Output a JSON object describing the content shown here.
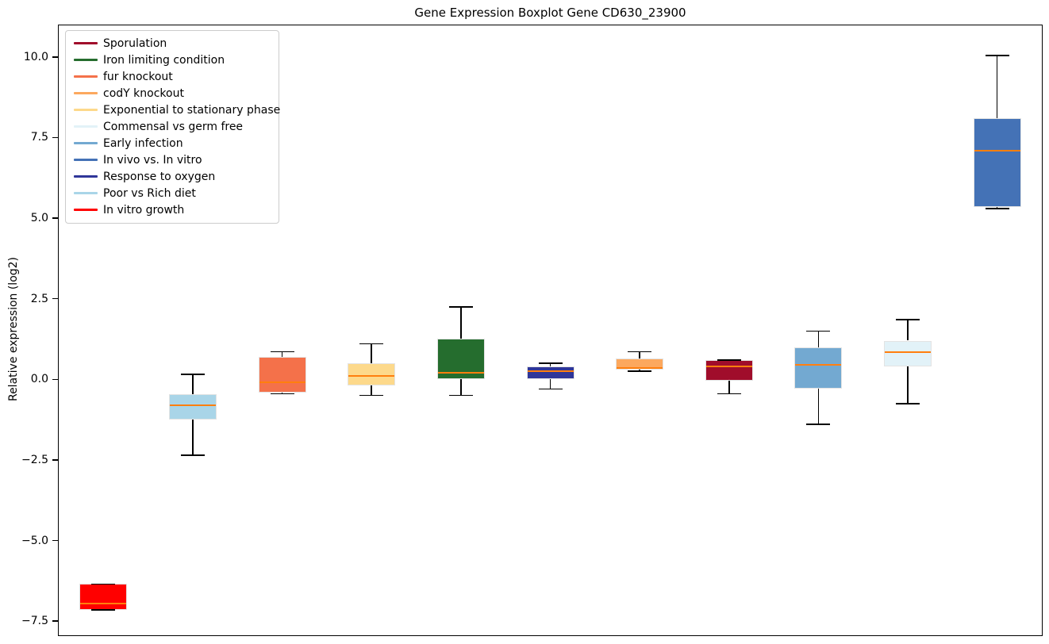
{
  "chart_data": {
    "type": "boxplot",
    "title": "Gene Expression Boxplot Gene CD630_23900",
    "xlabel": "",
    "ylabel": "Relative expression (log2)",
    "ylim": [
      -7.94,
      10.98
    ],
    "yticks": [
      10.0,
      7.5,
      5.0,
      2.5,
      0.0,
      -2.5,
      -5.0,
      -7.5
    ],
    "ytick_labels": [
      "10.0",
      "7.5",
      "5.0",
      "2.5",
      "0.0",
      "−2.5",
      "−5.0",
      "−7.5"
    ],
    "grid": false,
    "x_tick_labels_shown": false,
    "median_color": "#ff7f0e",
    "whisker_color": "#000000",
    "legend_position": "upper-left",
    "legend": [
      {
        "label": "Sporulation",
        "color": "#a00d2b"
      },
      {
        "label": "Iron limiting condition",
        "color": "#256d2e"
      },
      {
        "label": "fur knockout",
        "color": "#f4714a"
      },
      {
        "label": "codY knockout",
        "color": "#fca85e"
      },
      {
        "label": "Exponential to stationary phase",
        "color": "#fdd98b"
      },
      {
        "label": "Commensal vs germ free",
        "color": "#e2f2f8"
      },
      {
        "label": "Early infection",
        "color": "#73a9d1"
      },
      {
        "label": "In vivo vs. In vitro",
        "color": "#4472b6"
      },
      {
        "label": "Response to oxygen",
        "color": "#2f3699"
      },
      {
        "label": "Poor vs Rich diet",
        "color": "#a9d5e8"
      },
      {
        "label": "In vitro growth",
        "color": "#ff0000"
      }
    ],
    "series": [
      {
        "name": "In vitro growth",
        "color": "#ff0000",
        "whisker_low": -7.15,
        "q1": -7.15,
        "median": -6.95,
        "q3": -6.35,
        "whisker_high": -6.35
      },
      {
        "name": "Poor vs Rich diet",
        "color": "#a9d5e8",
        "whisker_low": -2.35,
        "q1": -1.25,
        "median": -0.8,
        "q3": -0.45,
        "whisker_high": 0.15
      },
      {
        "name": "fur knockout",
        "color": "#f4714a",
        "whisker_low": -0.45,
        "q1": -0.4,
        "median": -0.1,
        "q3": 0.7,
        "whisker_high": 0.85
      },
      {
        "name": "Exponential to stationary phase",
        "color": "#fdd98b",
        "whisker_low": -0.5,
        "q1": -0.2,
        "median": 0.1,
        "q3": 0.5,
        "whisker_high": 1.1
      },
      {
        "name": "Iron limiting condition",
        "color": "#256d2e",
        "whisker_low": -0.5,
        "q1": 0.0,
        "median": 0.2,
        "q3": 1.25,
        "whisker_high": 2.25
      },
      {
        "name": "Response to oxygen",
        "color": "#2f3699",
        "whisker_low": -0.3,
        "q1": 0.0,
        "median": 0.25,
        "q3": 0.4,
        "whisker_high": 0.5
      },
      {
        "name": "codY knockout",
        "color": "#fca85e",
        "whisker_low": 0.25,
        "q1": 0.3,
        "median": 0.35,
        "q3": 0.65,
        "whisker_high": 0.85
      },
      {
        "name": "Sporulation",
        "color": "#a00d2b",
        "whisker_low": -0.45,
        "q1": -0.05,
        "median": 0.4,
        "q3": 0.6,
        "whisker_high": 0.6
      },
      {
        "name": "Early infection",
        "color": "#73a9d1",
        "whisker_low": -1.4,
        "q1": -0.3,
        "median": 0.45,
        "q3": 1.0,
        "whisker_high": 1.5
      },
      {
        "name": "Commensal vs germ free",
        "color": "#e2f2f8",
        "whisker_low": -0.75,
        "q1": 0.4,
        "median": 0.85,
        "q3": 1.2,
        "whisker_high": 1.85
      },
      {
        "name": "In vivo vs. In vitro",
        "color": "#4472b6",
        "whisker_low": 5.3,
        "q1": 5.35,
        "median": 7.1,
        "q3": 8.1,
        "whisker_high": 10.05
      }
    ]
  }
}
